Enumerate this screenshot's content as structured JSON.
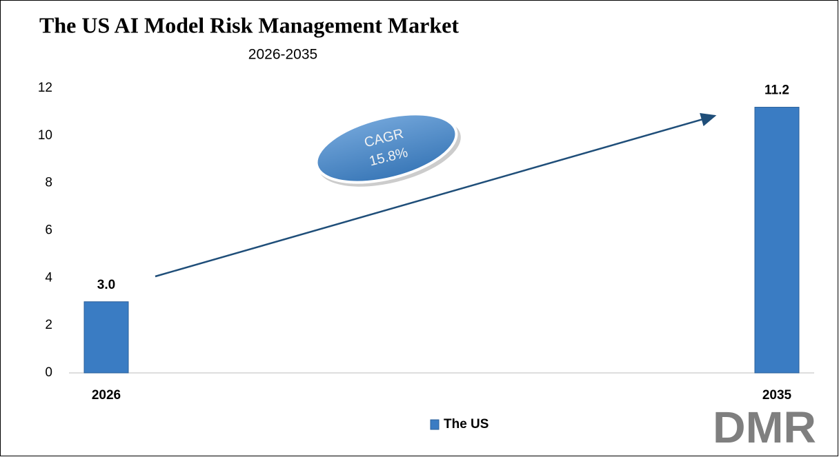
{
  "chart_data": {
    "type": "bar",
    "title": "The US AI Model Risk Management Market",
    "subtitle": "2026-2035",
    "categories": [
      "2026",
      "2035"
    ],
    "series": [
      {
        "name": "The US",
        "color": "#3a7cc3",
        "values": [
          3.0,
          11.2
        ],
        "value_labels": [
          "3.0",
          "11.2"
        ]
      }
    ],
    "ylim": [
      0,
      12
    ],
    "yticks": [
      0,
      2,
      4,
      6,
      8,
      10,
      12
    ],
    "grid": false,
    "legend": "bottom",
    "annotations": [
      "CAGR",
      "15.8%"
    ],
    "logo": "DMR"
  }
}
